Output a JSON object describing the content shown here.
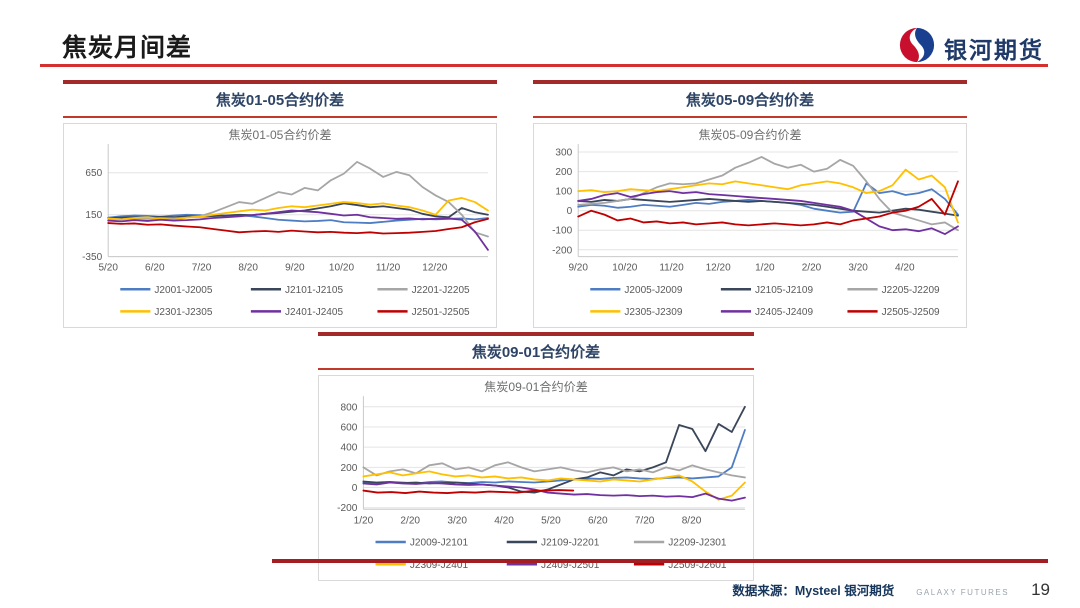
{
  "header": {
    "title": "焦炭月间差"
  },
  "logo": {
    "name": "银河期货"
  },
  "footer": {
    "source": "数据来源：Mysteel 银河期货",
    "brand": "GALAXY FUTURES",
    "page_number": "19"
  },
  "chart_data": [
    {
      "type": "line",
      "header": "焦炭01-05合约价差",
      "title": "焦炭01-05合约价差",
      "x_ticks": [
        "5/20",
        "6/20",
        "7/20",
        "8/20",
        "9/20",
        "10/20",
        "11/20",
        "12/20"
      ],
      "y_ticks": [
        650,
        150,
        -350
      ],
      "ylim": [
        -350,
        920
      ],
      "legend_position": "bottom",
      "grid": true,
      "series": [
        {
          "name": "J2001-J2005",
          "color": "#4e7dc4",
          "values": [
            115,
            130,
            140,
            135,
            125,
            140,
            150,
            145,
            135,
            140,
            145,
            130,
            110,
            90,
            80,
            70,
            75,
            85,
            60,
            55,
            50,
            65,
            80,
            90,
            100,
            95,
            100,
            105,
            95,
            110
          ]
        },
        {
          "name": "J2101-J2105",
          "color": "#3a4659",
          "values": [
            110,
            115,
            120,
            115,
            125,
            120,
            130,
            125,
            135,
            140,
            150,
            145,
            160,
            170,
            185,
            200,
            225,
            250,
            285,
            265,
            240,
            250,
            230,
            210,
            160,
            130,
            120,
            230,
            180,
            150
          ]
        },
        {
          "name": "J2201-J2205",
          "color": "#a6a6a6",
          "values": [
            100,
            95,
            105,
            100,
            110,
            105,
            115,
            130,
            180,
            240,
            300,
            280,
            350,
            420,
            390,
            470,
            440,
            560,
            640,
            780,
            700,
            600,
            660,
            620,
            480,
            380,
            300,
            150,
            -60,
            -110
          ]
        },
        {
          "name": "J2301-J2305",
          "color": "#ffc000",
          "values": [
            105,
            95,
            110,
            120,
            100,
            90,
            115,
            125,
            150,
            170,
            190,
            210,
            200,
            230,
            250,
            240,
            260,
            280,
            300,
            290,
            270,
            285,
            260,
            240,
            200,
            150,
            320,
            350,
            300,
            200
          ]
        },
        {
          "name": "J2401-J2405",
          "color": "#7030a0",
          "values": [
            80,
            70,
            85,
            75,
            90,
            80,
            85,
            95,
            110,
            120,
            130,
            145,
            160,
            180,
            200,
            190,
            180,
            160,
            140,
            150,
            120,
            110,
            100,
            105,
            95,
            100,
            105,
            90,
            -50,
            -270
          ]
        },
        {
          "name": "J2501-J2505",
          "color": "#c00000",
          "values": [
            50,
            40,
            45,
            30,
            35,
            20,
            10,
            0,
            -20,
            -40,
            -60,
            -50,
            -45,
            -55,
            -40,
            -50,
            -60,
            -55,
            -65,
            -70,
            -60,
            -75,
            -70,
            -65,
            -55,
            -45,
            -20,
            0,
            60,
            100
          ]
        }
      ]
    },
    {
      "type": "line",
      "header": "焦炭05-09合约价差",
      "title": "焦炭05-09合约价差",
      "x_ticks": [
        "9/20",
        "10/20",
        "11/20",
        "12/20",
        "1/20",
        "2/20",
        "3/20",
        "4/20"
      ],
      "y_ticks": [
        300,
        200,
        100,
        0,
        -100,
        -200
      ],
      "ylim": [
        -235,
        310
      ],
      "legend_position": "bottom",
      "grid": true,
      "series": [
        {
          "name": "J2005-J2009",
          "color": "#4e7dc4",
          "values": [
            20,
            30,
            25,
            15,
            20,
            30,
            25,
            20,
            30,
            40,
            35,
            45,
            50,
            55,
            50,
            45,
            40,
            30,
            10,
            0,
            -10,
            -5,
            140,
            90,
            100,
            80,
            90,
            110,
            60,
            -20
          ]
        },
        {
          "name": "J2105-J2109",
          "color": "#3a4659",
          "values": [
            50,
            45,
            55,
            50,
            60,
            55,
            50,
            45,
            50,
            55,
            60,
            55,
            50,
            45,
            50,
            45,
            40,
            35,
            30,
            20,
            10,
            0,
            -5,
            -10,
            0,
            10,
            5,
            -5,
            -15,
            -25
          ]
        },
        {
          "name": "J2205-J2209",
          "color": "#a6a6a6",
          "values": [
            30,
            35,
            40,
            50,
            60,
            90,
            120,
            140,
            135,
            140,
            160,
            180,
            220,
            245,
            275,
            240,
            220,
            235,
            200,
            215,
            260,
            230,
            150,
            60,
            -10,
            -30,
            -50,
            -70,
            -60,
            -100
          ]
        },
        {
          "name": "J2305-J2309",
          "color": "#ffc000",
          "values": [
            100,
            105,
            95,
            100,
            110,
            105,
            100,
            110,
            120,
            130,
            140,
            135,
            150,
            140,
            130,
            120,
            110,
            130,
            140,
            150,
            140,
            120,
            90,
            100,
            130,
            210,
            160,
            180,
            120,
            -60
          ]
        },
        {
          "name": "J2405-J2409",
          "color": "#7030a0",
          "values": [
            50,
            60,
            80,
            90,
            70,
            85,
            95,
            100,
            90,
            95,
            85,
            80,
            75,
            70,
            65,
            60,
            55,
            50,
            40,
            30,
            20,
            0,
            -40,
            -80,
            -100,
            -95,
            -105,
            -90,
            -120,
            -80
          ]
        },
        {
          "name": "J2505-J2509",
          "color": "#c00000",
          "values": [
            -30,
            0,
            -20,
            -50,
            -40,
            -60,
            -55,
            -65,
            -60,
            -70,
            -65,
            -60,
            -70,
            -75,
            -70,
            -65,
            -70,
            -75,
            -70,
            -60,
            -70,
            -50,
            -40,
            -30,
            -10,
            0,
            20,
            60,
            -20,
            150
          ]
        }
      ]
    },
    {
      "type": "line",
      "header": "焦炭09-01合约价差",
      "title": "焦炭09-01合约价差",
      "x_ticks": [
        "1/20",
        "2/20",
        "3/20",
        "4/20",
        "5/20",
        "6/20",
        "7/20",
        "8/20"
      ],
      "y_ticks": [
        800,
        600,
        400,
        200,
        0,
        -200
      ],
      "ylim": [
        -215,
        845
      ],
      "legend_position": "bottom",
      "grid": true,
      "series": [
        {
          "name": "J2009-J2101",
          "color": "#4e7dc4",
          "values": [
            50,
            45,
            55,
            50,
            40,
            55,
            60,
            50,
            45,
            55,
            50,
            60,
            55,
            50,
            60,
            70,
            80,
            90,
            85,
            95,
            100,
            90,
            85,
            95,
            100,
            90,
            100,
            110,
            200,
            570
          ]
        },
        {
          "name": "J2109-J2201",
          "color": "#3a4659",
          "values": [
            60,
            50,
            55,
            45,
            50,
            40,
            45,
            50,
            40,
            30,
            20,
            0,
            -40,
            -50,
            -20,
            30,
            80,
            100,
            150,
            120,
            180,
            160,
            200,
            250,
            620,
            580,
            360,
            630,
            550,
            800
          ]
        },
        {
          "name": "J2209-J2301",
          "color": "#a6a6a6",
          "values": [
            200,
            120,
            160,
            180,
            140,
            220,
            240,
            180,
            200,
            160,
            220,
            250,
            200,
            160,
            180,
            200,
            170,
            150,
            180,
            200,
            160,
            180,
            150,
            200,
            170,
            220,
            180,
            150,
            120,
            100
          ]
        },
        {
          "name": "J2309-J2401",
          "color": "#ffc000",
          "values": [
            110,
            130,
            150,
            120,
            140,
            160,
            130,
            110,
            120,
            100,
            110,
            90,
            100,
            80,
            70,
            90,
            80,
            70,
            60,
            80,
            70,
            60,
            80,
            100,
            120,
            60,
            -40,
            -120,
            -80,
            50
          ]
        },
        {
          "name": "J2409-J2501",
          "color": "#7030a0",
          "values": [
            40,
            30,
            50,
            40,
            35,
            45,
            40,
            30,
            25,
            30,
            20,
            10,
            0,
            -20,
            -50,
            -60,
            -70,
            -65,
            -75,
            -80,
            -75,
            -85,
            -80,
            -90,
            -85,
            -95,
            -60,
            -110,
            -130,
            -100
          ]
        },
        {
          "name": "J2509-J2601",
          "color": "#c00000",
          "x_span": 0.55,
          "values": [
            -30,
            -50,
            -45,
            -55,
            -40,
            -50,
            -55,
            -45,
            -50,
            -40,
            -45,
            -50,
            -35,
            -30,
            -25,
            -30
          ]
        }
      ]
    }
  ]
}
